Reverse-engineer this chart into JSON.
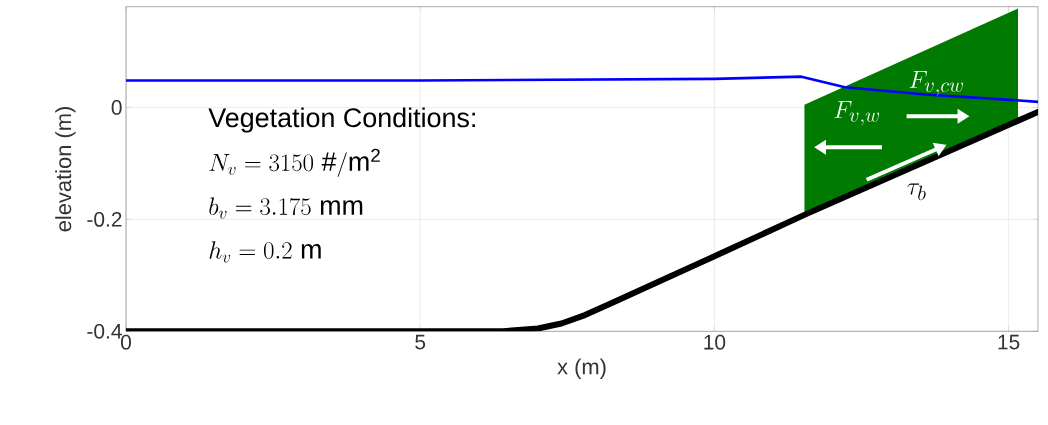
{
  "chart_data": {
    "type": "line",
    "xlabel": "x (m)",
    "ylabel": "elevation (m)",
    "xlim": [
      0,
      15.5
    ],
    "ylim": [
      -0.4,
      0.18
    ],
    "xticks": [
      0,
      5,
      10,
      15
    ],
    "yticks": [
      -0.4,
      -0.2,
      0
    ],
    "grid": true,
    "series": [
      {
        "type": "area",
        "color": "#007a00",
        "x": [
          11.53,
          15.16,
          15.16,
          11.53
        ],
        "values": [
          0.005,
          0.177,
          -0.019,
          -0.193
        ]
      },
      {
        "color": "#0000ff",
        "x": [
          0,
          5,
          10,
          11.48,
          12.22,
          13.58,
          15.1,
          15.5
        ],
        "values": [
          0.048,
          0.048,
          0.051,
          0.055,
          0.036,
          0.023,
          0.013,
          0.01
        ]
      },
      {
        "color": "#000000",
        "x": [
          0,
          6.4,
          7.0,
          7.4,
          7.8,
          8.2,
          10,
          11.53,
          15.5
        ],
        "values": [
          -0.4,
          -0.4,
          -0.395,
          -0.386,
          -0.371,
          -0.352,
          -0.266,
          -0.192,
          -0.008
        ]
      }
    ],
    "annotations": [
      "Vegetation Conditions:",
      "N_v = 3150\\ \\mathrm{\\#/m^{2}}",
      "b_v = 3.175\\ \\mathrm{mm}",
      "h_v = 0.2\\ \\mathrm{m}",
      "F_{v,w}",
      "F_{v,cw}",
      "\\tau_b"
    ]
  }
}
